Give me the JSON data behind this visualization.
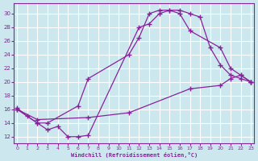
{
  "bg_color": "#cce8ee",
  "grid_color": "#ffffff",
  "line_color": "#882299",
  "marker": "+",
  "xlabel": "Windchill (Refroidissement éolien,°C)",
  "ylabel_ticks": [
    12,
    14,
    16,
    18,
    20,
    22,
    24,
    26,
    28,
    30
  ],
  "xlim": [
    -0.3,
    23.3
  ],
  "ylim": [
    11.0,
    31.5
  ],
  "xticks": [
    0,
    1,
    2,
    3,
    4,
    5,
    6,
    7,
    8,
    9,
    10,
    11,
    12,
    13,
    14,
    15,
    16,
    17,
    18,
    19,
    20,
    21,
    22,
    23
  ],
  "curve1_x": [
    0,
    1,
    2,
    3,
    4,
    5,
    6,
    7,
    12,
    13,
    14,
    15,
    16,
    17,
    18,
    19,
    20,
    21,
    22,
    23
  ],
  "curve1_y": [
    16.2,
    15.0,
    14.0,
    13.0,
    13.5,
    12.0,
    12.0,
    12.2,
    28.0,
    28.5,
    30.0,
    30.5,
    30.5,
    30.0,
    29.5,
    25.0,
    22.5,
    21.0,
    20.5,
    20.0
  ],
  "curve2_x": [
    0,
    2,
    3,
    6,
    7,
    11,
    12,
    13,
    14,
    15,
    16,
    17,
    20,
    21,
    22,
    23
  ],
  "curve2_y": [
    16.0,
    14.0,
    14.0,
    16.5,
    20.5,
    24.0,
    26.5,
    30.0,
    30.5,
    30.5,
    30.0,
    27.5,
    25.0,
    22.0,
    21.0,
    20.0
  ],
  "curve3_x": [
    0,
    2,
    7,
    11,
    17,
    20,
    21,
    22,
    23
  ],
  "curve3_y": [
    16.0,
    14.5,
    14.8,
    15.5,
    19.0,
    19.5,
    20.5,
    21.0,
    20.0
  ]
}
